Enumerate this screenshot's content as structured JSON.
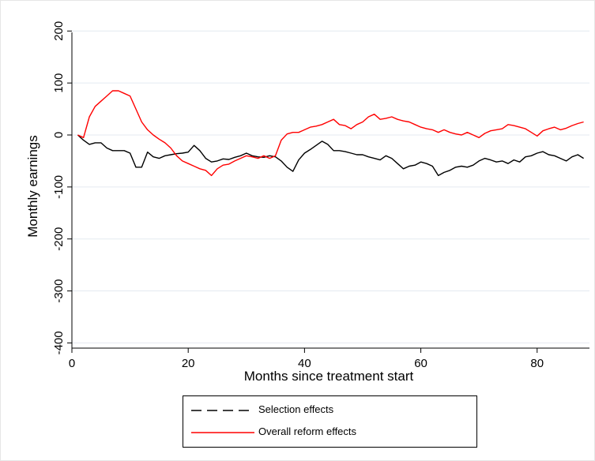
{
  "chart_data": {
    "type": "line",
    "xlabel": "Months since treatment start",
    "ylabel": "Monthly earnings",
    "xlim": [
      0,
      89
    ],
    "ylim": [
      -410,
      205
    ],
    "xticks": [
      0,
      20,
      40,
      60,
      80
    ],
    "yticks": [
      200,
      100,
      0,
      -100,
      -200,
      -300,
      -400
    ],
    "grid": "horizontal",
    "legend_position": "bottom",
    "series": [
      {
        "name": "Selection effects",
        "color": "#000000",
        "style": "dashed",
        "x": [
          1,
          2,
          3,
          4,
          5,
          6,
          7,
          8,
          9,
          10,
          11,
          12,
          13,
          14,
          15,
          16,
          17,
          18,
          19,
          20,
          21,
          22,
          23,
          24,
          25,
          26,
          27,
          28,
          29,
          30,
          31,
          32,
          33,
          34,
          35,
          36,
          37,
          38,
          39,
          40,
          41,
          42,
          43,
          44,
          45,
          46,
          47,
          48,
          49,
          50,
          51,
          52,
          53,
          54,
          55,
          56,
          57,
          58,
          59,
          60,
          61,
          62,
          63,
          64,
          65,
          66,
          67,
          68,
          69,
          70,
          71,
          72,
          73,
          74,
          75,
          76,
          77,
          78,
          79,
          80,
          81,
          82,
          83,
          84,
          85,
          86,
          87,
          88
        ],
        "values": [
          0,
          -10,
          -18,
          -15,
          -15,
          -25,
          -30,
          -30,
          -30,
          -35,
          -62,
          -62,
          -33,
          -42,
          -45,
          -40,
          -38,
          -36,
          -35,
          -33,
          -20,
          -30,
          -45,
          -52,
          -50,
          -46,
          -47,
          -43,
          -40,
          -35,
          -40,
          -42,
          -43,
          -40,
          -42,
          -50,
          -62,
          -70,
          -48,
          -35,
          -28,
          -20,
          -12,
          -18,
          -30,
          -30,
          -32,
          -35,
          -38,
          -38,
          -42,
          -45,
          -48,
          -40,
          -45,
          -55,
          -65,
          -60,
          -58,
          -52,
          -55,
          -60,
          -78,
          -72,
          -68,
          -62,
          -60,
          -62,
          -58,
          -50,
          -45,
          -48,
          -52,
          -50,
          -55,
          -48,
          -52,
          -42,
          -40,
          -35,
          -32,
          -38,
          -40,
          -45,
          -50,
          -42,
          -38,
          -45
        ]
      },
      {
        "name": "Overall reform effects",
        "color": "#ff0000",
        "style": "solid",
        "x": [
          1,
          2,
          3,
          4,
          5,
          6,
          7,
          8,
          9,
          10,
          11,
          12,
          13,
          14,
          15,
          16,
          17,
          18,
          19,
          20,
          21,
          22,
          23,
          24,
          25,
          26,
          27,
          28,
          29,
          30,
          31,
          32,
          33,
          34,
          35,
          36,
          37,
          38,
          39,
          40,
          41,
          42,
          43,
          44,
          45,
          46,
          47,
          48,
          49,
          50,
          51,
          52,
          53,
          54,
          55,
          56,
          57,
          58,
          59,
          60,
          61,
          62,
          63,
          64,
          65,
          66,
          67,
          68,
          69,
          70,
          71,
          72,
          73,
          74,
          75,
          76,
          77,
          78,
          79,
          80,
          81,
          82,
          83,
          84,
          85,
          86,
          87,
          88
        ],
        "values": [
          0,
          -5,
          35,
          55,
          65,
          75,
          85,
          85,
          80,
          75,
          50,
          25,
          10,
          0,
          -8,
          -15,
          -25,
          -40,
          -50,
          -55,
          -60,
          -65,
          -68,
          -78,
          -65,
          -58,
          -56,
          -50,
          -45,
          -40,
          -42,
          -45,
          -40,
          -45,
          -40,
          -10,
          2,
          5,
          5,
          10,
          15,
          17,
          20,
          25,
          30,
          20,
          18,
          12,
          20,
          25,
          35,
          40,
          30,
          32,
          35,
          30,
          27,
          25,
          20,
          15,
          12,
          10,
          5,
          10,
          5,
          2,
          0,
          5,
          0,
          -5,
          3,
          8,
          10,
          12,
          20,
          18,
          15,
          12,
          5,
          -2,
          8,
          12,
          15,
          10,
          13,
          18,
          22,
          25
        ]
      }
    ]
  }
}
